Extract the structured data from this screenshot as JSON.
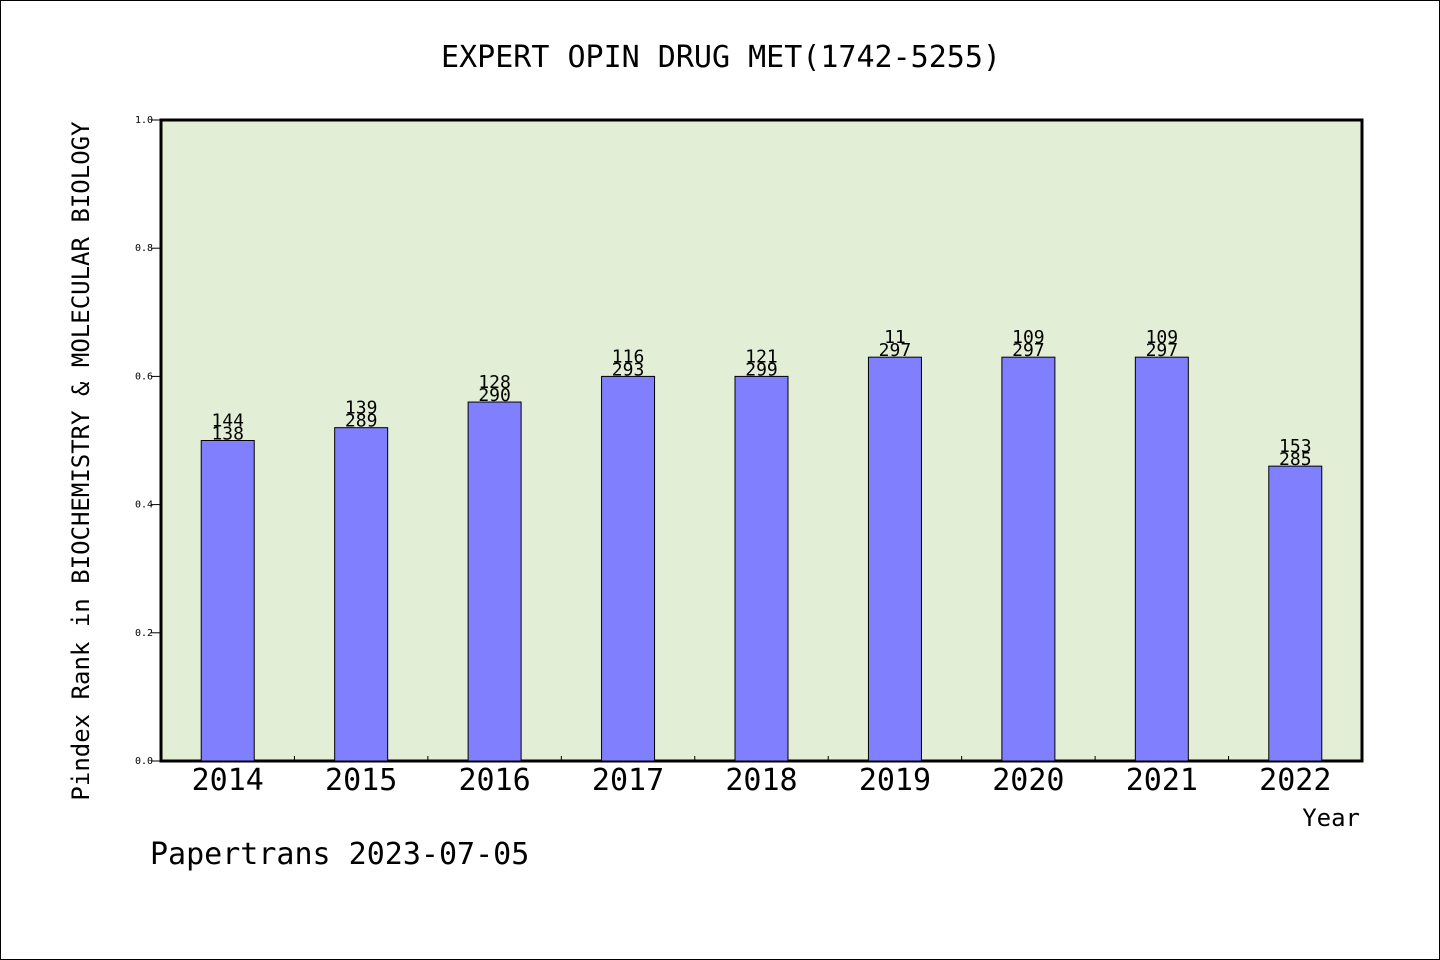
{
  "chart_data": {
    "type": "bar",
    "title": "EXPERT OPIN DRUG MET(1742-5255)",
    "xlabel": "Year",
    "ylabel": "Pindex Rank in BIOCHEMISTRY & MOLECULAR BIOLOGY",
    "ylim": [
      0,
      1.0
    ],
    "yticks": [
      "0.0",
      "0.2",
      "0.4",
      "0.6",
      "0.8",
      "1.0"
    ],
    "categories": [
      "2014",
      "2015",
      "2016",
      "2017",
      "2018",
      "2019",
      "2020",
      "2021",
      "2022"
    ],
    "values": [
      0.5,
      0.52,
      0.56,
      0.6,
      0.6,
      0.63,
      0.63,
      0.63,
      0.46
    ],
    "rank": [
      "144",
      "139",
      "128",
      "116",
      "121",
      "11",
      "109",
      "109",
      "153"
    ],
    "total": [
      "138",
      "289",
      "290",
      "293",
      "299",
      "297",
      "297",
      "297",
      "285"
    ],
    "grid": false,
    "colors": {
      "plot_background": "#e2efd6",
      "bar_fill": "#8080ff",
      "bar_stroke": "#000000"
    }
  },
  "footer": {
    "note": "Papertrans 2023-07-05"
  }
}
